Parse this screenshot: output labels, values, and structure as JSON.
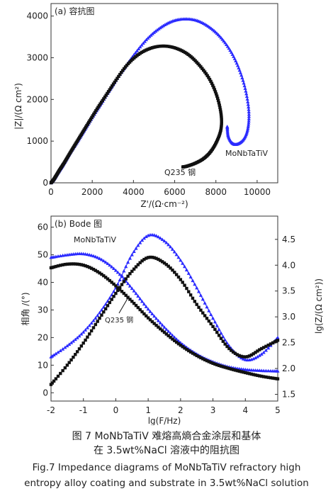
{
  "chart_data": [
    {
      "type": "scatter",
      "title": "(a) 容抗图",
      "xlabel": "Z'/(Ω·cm⁻²)",
      "ylabel": "|Z|/(Ω cm²)",
      "xlim": [
        0,
        11000
      ],
      "ylim": [
        0,
        4300
      ],
      "x_ticks": [
        0,
        2000,
        4000,
        6000,
        8000,
        10000
      ],
      "y_ticks": [
        0,
        1000,
        2000,
        3000,
        4000
      ],
      "annotations": [
        "MoNbTaTiV",
        "Q235 钢"
      ],
      "series": [
        {
          "name": "MoNbTaTiV",
          "color": "#2b2bff",
          "marker": "triangle",
          "points": [
            [
              0,
              0
            ],
            [
              150,
              90
            ],
            [
              300,
              210
            ],
            [
              500,
              360
            ],
            [
              700,
              520
            ],
            [
              950,
              730
            ],
            [
              1250,
              960
            ],
            [
              1600,
              1240
            ],
            [
              2000,
              1560
            ],
            [
              2450,
              1910
            ],
            [
              2950,
              2300
            ],
            [
              3500,
              2710
            ],
            [
              4100,
              3120
            ],
            [
              4700,
              3470
            ],
            [
              5300,
              3720
            ],
            [
              5900,
              3880
            ],
            [
              6500,
              3930
            ],
            [
              7100,
              3890
            ],
            [
              7700,
              3730
            ],
            [
              8250,
              3480
            ],
            [
              8750,
              3130
            ],
            [
              9150,
              2700
            ],
            [
              9450,
              2200
            ],
            [
              9600,
              1700
            ],
            [
              9550,
              1300
            ],
            [
              9350,
              1050
            ],
            [
              9050,
              930
            ],
            [
              8800,
              950
            ],
            [
              8600,
              1120
            ],
            [
              8550,
              1350
            ]
          ]
        },
        {
          "name": "Q235 钢",
          "color": "#111111",
          "marker": "square",
          "points": [
            [
              0,
              0
            ],
            [
              120,
              70
            ],
            [
              260,
              180
            ],
            [
              430,
              320
            ],
            [
              640,
              480
            ],
            [
              880,
              680
            ],
            [
              1150,
              900
            ],
            [
              1470,
              1160
            ],
            [
              1830,
              1450
            ],
            [
              2230,
              1770
            ],
            [
              2670,
              2100
            ],
            [
              3150,
              2460
            ],
            [
              3680,
              2820
            ],
            [
              4250,
              3080
            ],
            [
              4850,
              3230
            ],
            [
              5450,
              3280
            ],
            [
              6050,
              3230
            ],
            [
              6650,
              3080
            ],
            [
              7200,
              2820
            ],
            [
              7700,
              2480
            ],
            [
              8050,
              2080
            ],
            [
              8250,
              1650
            ],
            [
              8250,
              1300
            ],
            [
              8050,
              1000
            ],
            [
              7750,
              750
            ],
            [
              7400,
              580
            ],
            [
              7000,
              470
            ],
            [
              6600,
              400
            ],
            [
              6400,
              380
            ]
          ]
        }
      ]
    },
    {
      "type": "line",
      "title": "(b) Bode 图",
      "xlabel": "lg(F/Hz)",
      "ylabel": "相角 /(°)",
      "y2label": "lg(Z/(Ω cm²))",
      "xlim": [
        -2,
        5
      ],
      "ylim": [
        -3,
        64
      ],
      "y2lim": [
        1.37,
        4.95
      ],
      "x_ticks": [
        -2,
        -1,
        0,
        1,
        2,
        3,
        4,
        5
      ],
      "y_ticks": [
        0,
        10,
        20,
        30,
        40,
        50,
        60
      ],
      "y2_ticks": [
        1.5,
        2.0,
        2.5,
        3.0,
        3.5,
        4.0,
        4.5
      ],
      "annotations": [
        "MoNbTaTiV",
        "Q235 钢"
      ],
      "series": [
        {
          "name": "MoNbTaTiV",
          "quantity": "modulus",
          "axis": "right",
          "color": "#2b2bff",
          "marker": "triangle",
          "x": [
            -2,
            -1.5,
            -1,
            -0.5,
            0,
            0.5,
            1,
            1.5,
            2,
            2.5,
            3,
            3.5,
            4,
            4.5,
            5
          ],
          "y": [
            4.15,
            4.2,
            4.22,
            4.13,
            3.9,
            3.55,
            3.15,
            2.8,
            2.5,
            2.28,
            2.13,
            2.03,
            1.98,
            1.96,
            1.95
          ]
        },
        {
          "name": "MoNbTaTiV",
          "quantity": "phase",
          "axis": "left",
          "color": "#2b2bff",
          "marker": "triangle",
          "x": [
            -2,
            -1.5,
            -1,
            -0.5,
            0,
            0.5,
            1,
            1.5,
            2,
            2.5,
            3,
            3.5,
            4,
            4.5,
            5
          ],
          "y": [
            13,
            17,
            22,
            29,
            38,
            50,
            57,
            55,
            48,
            38,
            27,
            17,
            12,
            14,
            20
          ]
        },
        {
          "name": "Q235 钢",
          "quantity": "modulus",
          "axis": "right",
          "color": "#111111",
          "marker": "square",
          "x": [
            -2,
            -1.5,
            -1,
            -0.5,
            0,
            0.5,
            1,
            1.5,
            2,
            2.5,
            3,
            3.5,
            4,
            4.5,
            5
          ],
          "y": [
            3.95,
            4.02,
            4.0,
            3.85,
            3.6,
            3.3,
            2.98,
            2.7,
            2.45,
            2.25,
            2.1,
            2.0,
            1.92,
            1.85,
            1.8
          ]
        },
        {
          "name": "Q235 钢",
          "quantity": "phase",
          "axis": "left",
          "color": "#111111",
          "marker": "square",
          "x": [
            -2,
            -1.5,
            -1,
            -0.5,
            0,
            0.5,
            1,
            1.5,
            2,
            2.5,
            3,
            3.5,
            4,
            4.5,
            5
          ],
          "y": [
            3,
            10,
            18,
            27,
            36,
            44,
            49,
            47,
            41,
            32,
            24,
            16,
            13,
            16,
            19
          ]
        }
      ]
    }
  ],
  "caption": {
    "line1": "图 7   MoNbTaTiV 难熔高熵合金涂层和基体",
    "line2": "在 3.5wt%NaCl 溶液中的阻抗图",
    "line3": "Fig.7  Impedance diagrams of MoNbTaTiV refractory high",
    "line4": "entropy alloy coating and substrate in 3.5wt%NaCl solution"
  }
}
